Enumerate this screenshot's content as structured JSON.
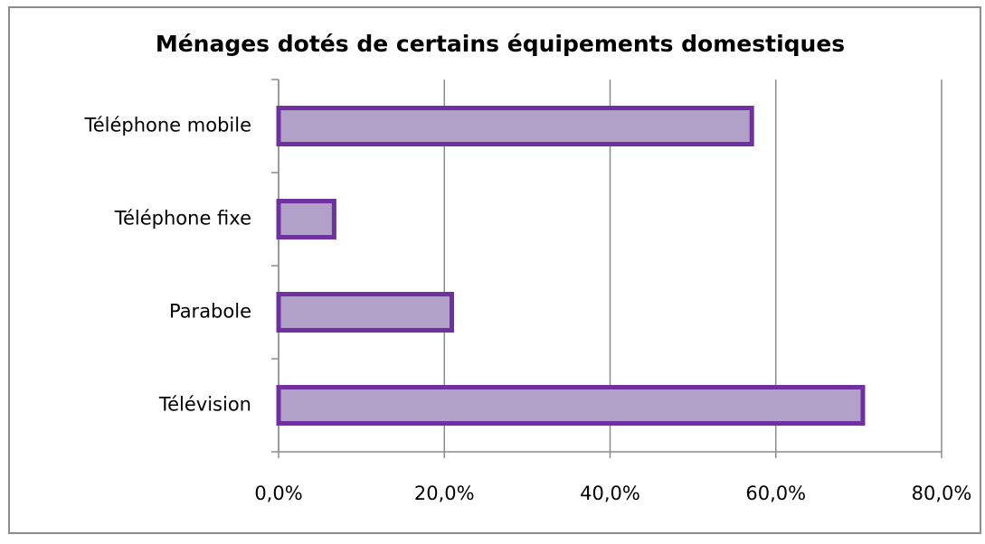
{
  "chart_data": {
    "type": "bar",
    "orientation": "horizontal",
    "title": "Ménages dotés de certains équipements domestiques",
    "categories": [
      "Téléphone mobile",
      "Téléphone fixe",
      "Parabole",
      "Télévision"
    ],
    "values": [
      57.1,
      6.7,
      20.9,
      70.5
    ],
    "color": "#b1a0c7",
    "edge_color": "#7030a0",
    "xlim": [
      0,
      80
    ],
    "xticks": [
      {
        "value": 0,
        "label": "0,0%"
      },
      {
        "value": 20,
        "label": "20,0%"
      },
      {
        "value": 40,
        "label": "40,0%"
      },
      {
        "value": 60,
        "label": "60,0%"
      },
      {
        "value": 80,
        "label": "80,0%"
      }
    ],
    "grid": true
  }
}
